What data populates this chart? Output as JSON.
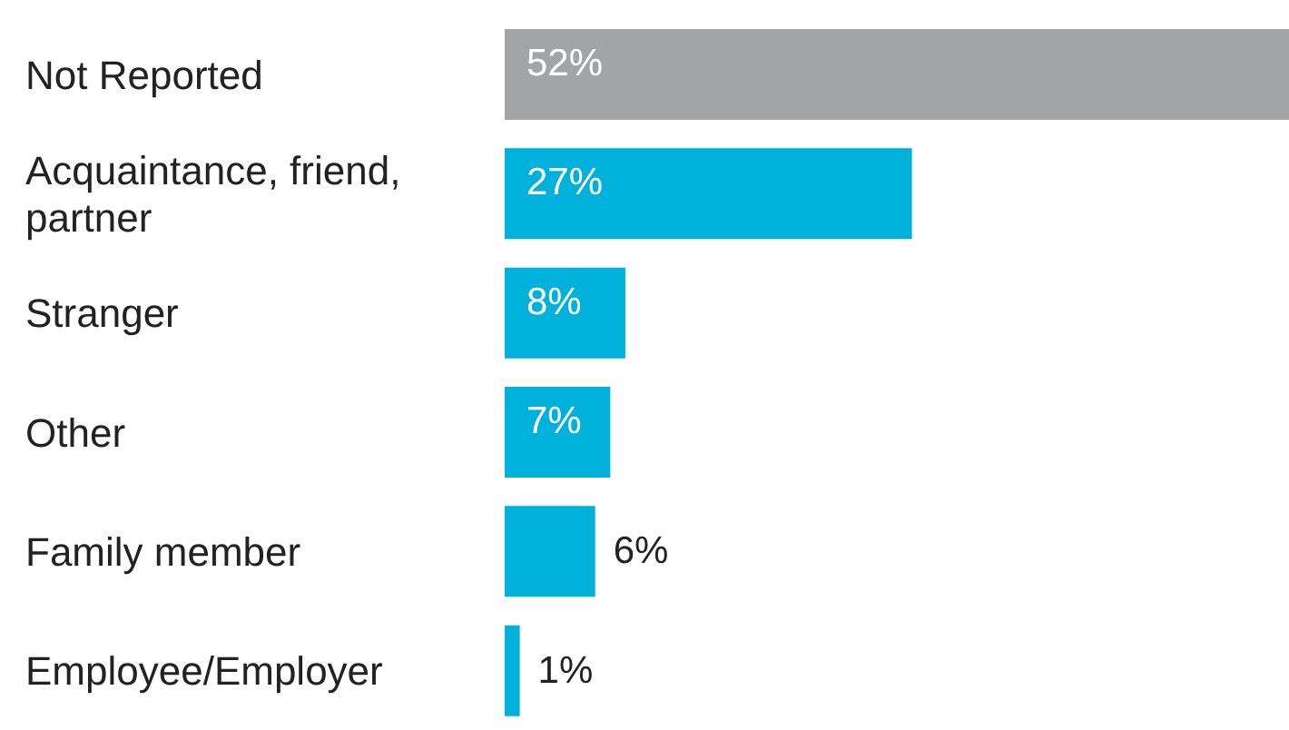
{
  "chart_data": {
    "type": "bar",
    "orientation": "horizontal",
    "categories": [
      "Not Reported",
      "Acquaintance, friend, partner",
      "Stranger",
      "Other",
      "Family member",
      "Employee/Employer"
    ],
    "values": [
      52,
      27,
      8,
      7,
      6,
      1
    ],
    "colors": [
      "#a2a5a8",
      "#00b1dc",
      "#00b1dc",
      "#00b1dc",
      "#00b1dc",
      "#00b1dc"
    ],
    "value_labels": [
      "52%",
      "27%",
      "8%",
      "7%",
      "6%",
      "1%"
    ]
  }
}
